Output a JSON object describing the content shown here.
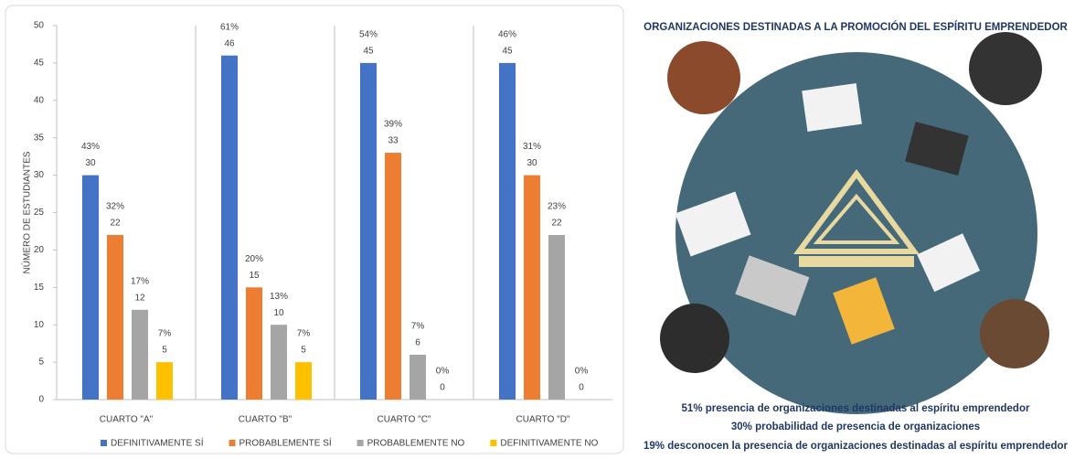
{
  "chart_data": {
    "type": "bar",
    "y_label": "NÚMERO DE ESTUDIANTES",
    "categories": [
      "CUARTO \"A\"",
      "CUARTO \"B\"",
      "CUARTO \"C\"",
      "CUARTO \"D\""
    ],
    "series": [
      {
        "name": "DEFINITIVAMENTE SÍ",
        "color": "#4472c4",
        "values": [
          30,
          46,
          45,
          45
        ],
        "share_labels": [
          "43%",
          "61%",
          "54%",
          "46%"
        ]
      },
      {
        "name": "PROBABLEMENTE SÍ",
        "color": "#ed7d31",
        "values": [
          22,
          15,
          33,
          30
        ],
        "share_labels": [
          "32%",
          "20%",
          "39%",
          "31%"
        ]
      },
      {
        "name": "PROBABLEMENTE NO",
        "color": "#a5a5a5",
        "values": [
          12,
          10,
          6,
          22
        ],
        "share_labels": [
          "17%",
          "13%",
          "7%",
          "23%"
        ]
      },
      {
        "name": "DEFINITIVAMENTE NO",
        "color": "#ffc000",
        "values": [
          5,
          5,
          0,
          0
        ],
        "share_labels": [
          "7%",
          "7%",
          "0%",
          "0%"
        ]
      }
    ],
    "ylim": [
      0,
      50
    ],
    "yticks": [
      0,
      5,
      10,
      15,
      20,
      25,
      30,
      35,
      40,
      45,
      50
    ],
    "legend": "bottom"
  },
  "panel": {
    "title": "ORGANIZACIONES DESTINADAS A LA PROMOCIÓN DEL ESPÍRITU EMPRENDEDOR",
    "notes": [
      "51% presencia de organizaciones destinadas al espíritu emprendedor",
      "30% probabilidad de presencia de organizaciones",
      "19%  desconocen la presencia de organizaciones destinadas al espíritu emprendedor"
    ]
  }
}
